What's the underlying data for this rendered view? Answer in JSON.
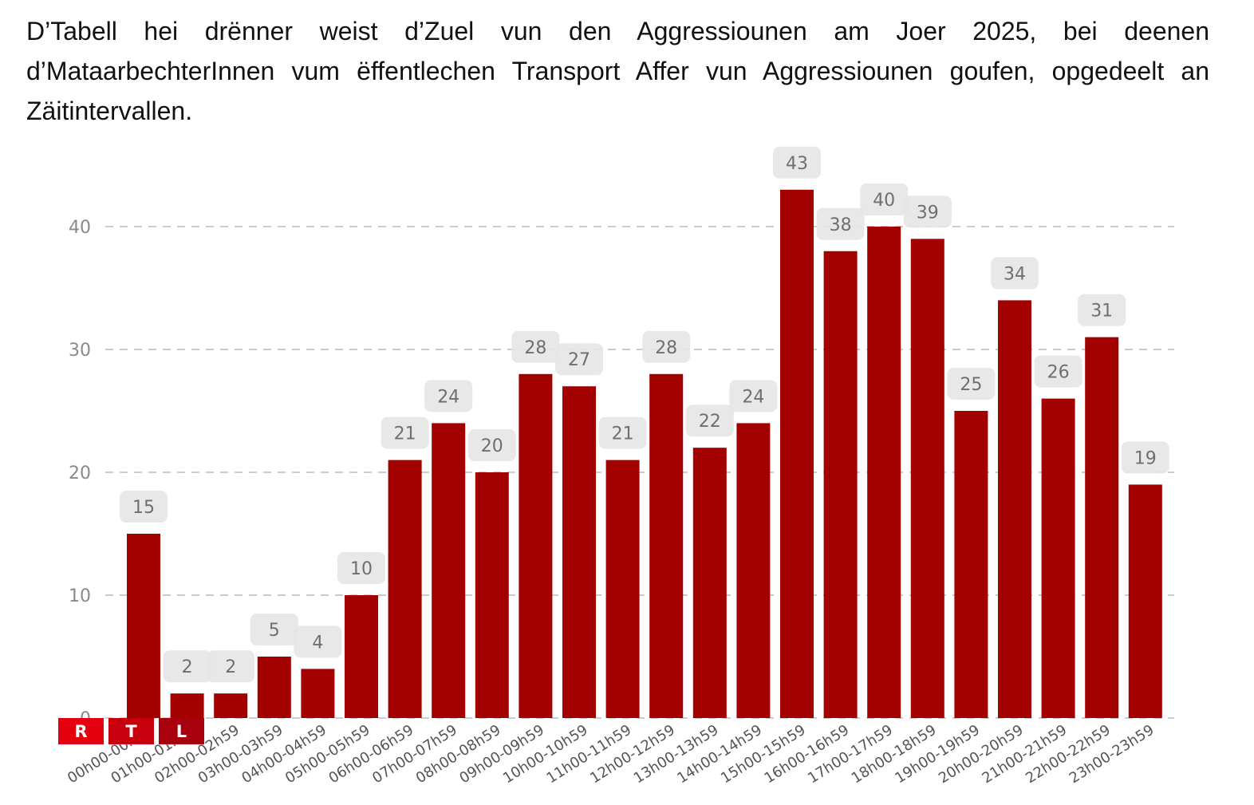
{
  "caption": "D’Tabell hei drënner weist d’Zuel vun den Aggressiounen am Joer 2025, bei deenen d’MataarbechterInnen vum ëffentlechen Transport Affer vun Aggressiounen goufen, opgedeelt an Zäitintervallen.",
  "logo": {
    "letters": [
      "R",
      "T",
      "L"
    ],
    "colors": [
      "#e3000f",
      "#c8000e",
      "#a8000d"
    ]
  },
  "colors": {
    "bar": "#a30000",
    "label_bg": "#e6e6e6",
    "grid": "#cccccc"
  },
  "chart_data": {
    "type": "bar",
    "title": "",
    "xlabel": "",
    "ylabel": "",
    "ylim": [
      0,
      46
    ],
    "yticks": [
      0,
      10,
      20,
      30,
      40
    ],
    "grid": true,
    "grid_style": "dashed",
    "legend": "none",
    "categories": [
      "00h00-00h59",
      "01h00-01h59",
      "02h00-02h59",
      "03h00-03h59",
      "04h00-04h59",
      "05h00-05h59",
      "06h00-06h59",
      "07h00-07h59",
      "08h00-08h59",
      "09h00-09h59",
      "10h00-10h59",
      "11h00-11h59",
      "12h00-12h59",
      "13h00-13h59",
      "14h00-14h59",
      "15h00-15h59",
      "16h00-16h59",
      "17h00-17h59",
      "18h00-18h59",
      "19h00-19h59",
      "20h00-20h59",
      "21h00-21h59",
      "22h00-22h59",
      "23h00-23h59"
    ],
    "values": [
      15,
      2,
      2,
      5,
      4,
      10,
      21,
      24,
      20,
      28,
      27,
      21,
      28,
      22,
      24,
      43,
      38,
      40,
      39,
      25,
      34,
      26,
      31,
      19
    ],
    "data_labels": true
  }
}
